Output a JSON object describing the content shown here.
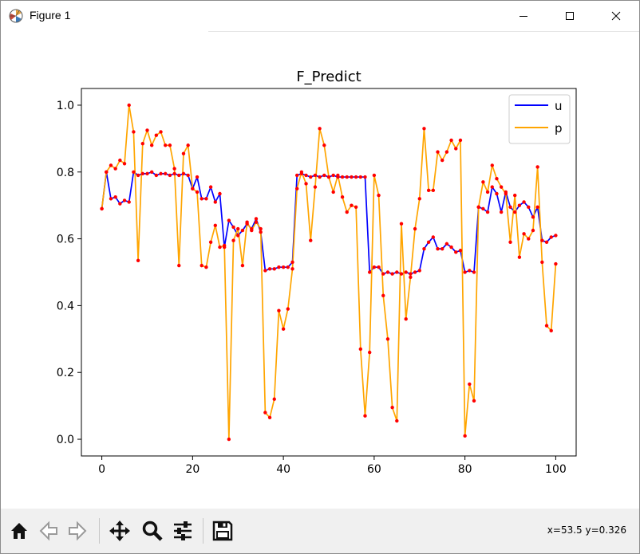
{
  "window": {
    "title": "Figure 1",
    "controls": {
      "minimize": "minimize",
      "maximize": "maximize",
      "close": "close"
    }
  },
  "toolbar": {
    "buttons": [
      "home-icon",
      "back-icon",
      "forward-icon",
      "pan-icon",
      "zoom-icon",
      "configure-subplots-icon",
      "save-icon"
    ],
    "coordinates": "x=53.5 y=0.326"
  },
  "colors": {
    "u": "#0000ff",
    "p": "#ffa500",
    "markers": "#ff0000"
  },
  "chart_data": {
    "type": "line",
    "title": "F_Predict",
    "xlim": [
      -4.5,
      104.5
    ],
    "ylim": [
      -0.05,
      1.05
    ],
    "xticks": [
      0,
      20,
      40,
      60,
      80,
      100
    ],
    "yticks": [
      0.0,
      0.2,
      0.4,
      0.6,
      0.8,
      1.0
    ],
    "legend_position": "top-right",
    "grid": false,
    "series": [
      {
        "name": "u",
        "color": "#0000ff",
        "values": [
          0.69,
          0.8,
          0.72,
          0.725,
          0.705,
          0.715,
          0.71,
          0.8,
          0.79,
          0.795,
          0.795,
          0.8,
          0.79,
          0.795,
          0.795,
          0.79,
          0.795,
          0.79,
          0.795,
          0.79,
          0.75,
          0.785,
          0.72,
          0.72,
          0.755,
          0.71,
          0.735,
          0.575,
          0.655,
          0.635,
          0.61,
          0.625,
          0.645,
          0.63,
          0.66,
          0.62,
          0.505,
          0.51,
          0.51,
          0.515,
          0.515,
          0.515,
          0.53,
          0.79,
          0.795,
          0.79,
          0.785,
          0.79,
          0.785,
          0.79,
          0.785,
          0.79,
          0.785,
          0.785,
          0.785,
          0.785,
          0.785,
          0.785,
          0.785,
          0.5,
          0.515,
          0.515,
          0.495,
          0.5,
          0.495,
          0.5,
          0.495,
          0.5,
          0.495,
          0.5,
          0.505,
          0.57,
          0.59,
          0.605,
          0.57,
          0.57,
          0.585,
          0.575,
          0.56,
          0.565,
          0.5,
          0.505,
          0.5,
          0.695,
          0.69,
          0.68,
          0.755,
          0.735,
          0.68,
          0.74,
          0.695,
          0.68,
          0.7,
          0.71,
          0.695,
          0.665,
          0.695,
          0.595,
          0.59,
          0.605,
          0.61
        ]
      },
      {
        "name": "p",
        "color": "#ffa500",
        "values": [
          0.69,
          0.8,
          0.82,
          0.81,
          0.835,
          0.825,
          1.0,
          0.92,
          0.535,
          0.885,
          0.925,
          0.88,
          0.91,
          0.92,
          0.88,
          0.88,
          0.81,
          0.52,
          0.855,
          0.88,
          0.75,
          0.74,
          0.52,
          0.515,
          0.59,
          0.64,
          0.575,
          0.58,
          0.0,
          0.595,
          0.63,
          0.52,
          0.65,
          0.625,
          0.65,
          0.63,
          0.08,
          0.065,
          0.12,
          0.385,
          0.33,
          0.39,
          0.51,
          0.75,
          0.8,
          0.765,
          0.595,
          0.755,
          0.93,
          0.88,
          0.785,
          0.74,
          0.79,
          0.725,
          0.68,
          0.7,
          0.695,
          0.27,
          0.07,
          0.26,
          0.79,
          0.73,
          0.43,
          0.3,
          0.095,
          0.055,
          0.645,
          0.36,
          0.485,
          0.63,
          0.72,
          0.93,
          0.745,
          0.745,
          0.86,
          0.835,
          0.86,
          0.895,
          0.87,
          0.895,
          0.01,
          0.165,
          0.115,
          0.695,
          0.77,
          0.74,
          0.82,
          0.78,
          0.755,
          0.735,
          0.59,
          0.73,
          0.545,
          0.615,
          0.6,
          0.625,
          0.815,
          0.53,
          0.34,
          0.325,
          0.525
        ]
      }
    ]
  }
}
